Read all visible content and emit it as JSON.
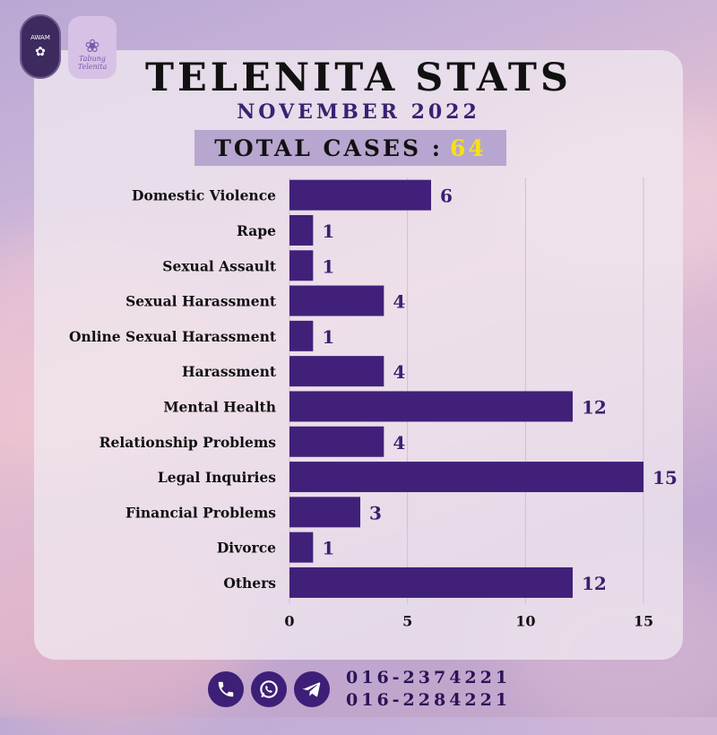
{
  "header": {
    "title": "TELENITA STATS",
    "subtitle": "NOVEMBER 2022",
    "total_label": "TOTAL CASES :",
    "total_value": "64"
  },
  "logos": {
    "left_text": "AWAM",
    "right_text": "Tabung Telenita"
  },
  "contacts": {
    "icons": [
      "phone-icon",
      "whatsapp-icon",
      "telegram-icon"
    ],
    "phone1": "016-2374221",
    "phone2": "016-2284221"
  },
  "colors": {
    "bar": "#41207a",
    "value_label": "#3a2171",
    "total_highlight": "#f7e01a"
  },
  "chart_data": {
    "type": "bar",
    "orientation": "horizontal",
    "categories": [
      "Domestic Violence",
      "Rape",
      "Sexual Assault",
      "Sexual Harassment",
      "Online Sexual Harassment",
      "Harassment",
      "Mental Health",
      "Relationship Problems",
      "Legal Inquiries",
      "Financial Problems",
      "Divorce",
      "Others"
    ],
    "values": [
      6,
      1,
      1,
      4,
      1,
      4,
      12,
      4,
      15,
      3,
      1,
      12
    ],
    "xlim": [
      0,
      15
    ],
    "xticks": [
      0,
      5,
      10,
      15
    ],
    "grid": true,
    "title": "",
    "xlabel": "",
    "ylabel": ""
  }
}
